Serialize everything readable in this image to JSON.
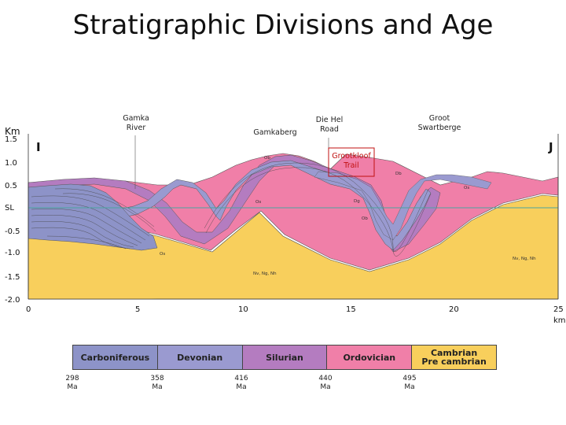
{
  "title": "Stratigraphic Divisions and Age",
  "y_axis": {
    "unit": "Km",
    "ticks": [
      "1.5",
      "1.0",
      "0.5",
      "SL",
      "-0.5",
      "-1.0",
      "-1.5",
      "-2.0"
    ]
  },
  "x_axis": {
    "ticks": [
      "0",
      "5",
      "10",
      "15",
      "20",
      "25"
    ],
    "unit": "km"
  },
  "section_ends": {
    "left": "I",
    "right": "J"
  },
  "place_labels": {
    "gamka_river": "Gamka\nRiver",
    "gamkaberg": "Gamkaberg",
    "die_hel_road": "Die Hel\nRoad",
    "groot_swartberge": "Groot\nSwartberge",
    "grootkloof_trail": "Grootkloof\nTrail"
  },
  "formation_labels": {
    "f1": "Os",
    "f2": "Os",
    "f3": "Os",
    "f4": "Dg",
    "f5": "Db",
    "f6": "Nv, Ng, Nh",
    "f7": "Nv, Ng, Nh",
    "f8": "Ob",
    "f9": "Ob"
  },
  "legend": [
    {
      "label": "Carboniferous",
      "color": "#8d93c8"
    },
    {
      "label": "Devonian",
      "color": "#9a9ad0"
    },
    {
      "label": "Silurian",
      "color": "#b47cc0"
    },
    {
      "label": "Ordovician",
      "color": "#f07fa8"
    },
    {
      "label": "Cambrian\nPre cambrian",
      "color": "#f8cf5c"
    }
  ],
  "ages": [
    "298\nMa",
    "358\nMa",
    "416\nMa",
    "440\nMa",
    "495\nMa"
  ],
  "colors": {
    "precambrian": "#f8cf5c",
    "ordovician": "#f07fa8",
    "silurian": "#b47cc0",
    "devonian": "#9a9ad0",
    "carboniferous": "#8d93c8",
    "sea_level": "#4aa4a0"
  }
}
